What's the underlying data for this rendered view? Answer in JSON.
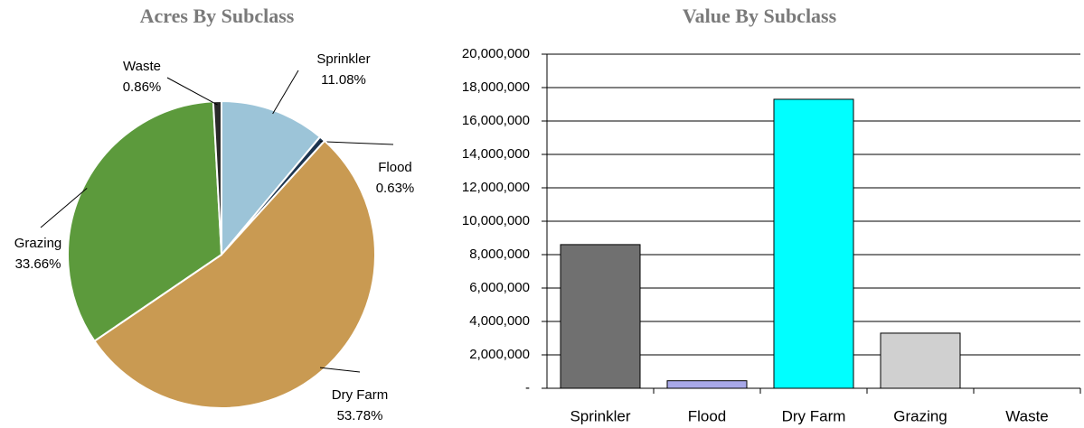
{
  "chart_data": [
    {
      "type": "pie",
      "title": "Acres By Subclass",
      "categories": [
        "Sprinkler",
        "Flood",
        "Dry Farm",
        "Grazing",
        "Waste"
      ],
      "values": [
        11.08,
        0.63,
        53.78,
        33.66,
        0.86
      ],
      "value_labels": [
        "11.08%",
        "0.63%",
        "53.78%",
        "33.66%",
        "0.86%"
      ],
      "colors": [
        "#9cc4d8",
        "#1d3550",
        "#c99a52",
        "#5c9a3c",
        "#2a2a2a"
      ]
    },
    {
      "type": "bar",
      "title": "Value By Subclass",
      "categories": [
        "Sprinkler",
        "Flood",
        "Dry Farm",
        "Grazing",
        "Waste"
      ],
      "values": [
        8600000,
        450000,
        17300000,
        3300000,
        0
      ],
      "colors": [
        "#707070",
        "#a8a8e8",
        "#00ffff",
        "#d0d0d0",
        "#ffffff"
      ],
      "ylim": [
        0,
        20000000
      ],
      "yticks": [
        {
          "value": 0,
          "label": "-"
        },
        {
          "value": 2000000,
          "label": "2,000,000"
        },
        {
          "value": 4000000,
          "label": "4,000,000"
        },
        {
          "value": 6000000,
          "label": "6,000,000"
        },
        {
          "value": 8000000,
          "label": "8,000,000"
        },
        {
          "value": 10000000,
          "label": "10,000,000"
        },
        {
          "value": 12000000,
          "label": "12,000,000"
        },
        {
          "value": 14000000,
          "label": "14,000,000"
        },
        {
          "value": 16000000,
          "label": "16,000,000"
        },
        {
          "value": 18000000,
          "label": "18,000,000"
        },
        {
          "value": 20000000,
          "label": "20,000,000"
        }
      ],
      "grid": true
    }
  ]
}
